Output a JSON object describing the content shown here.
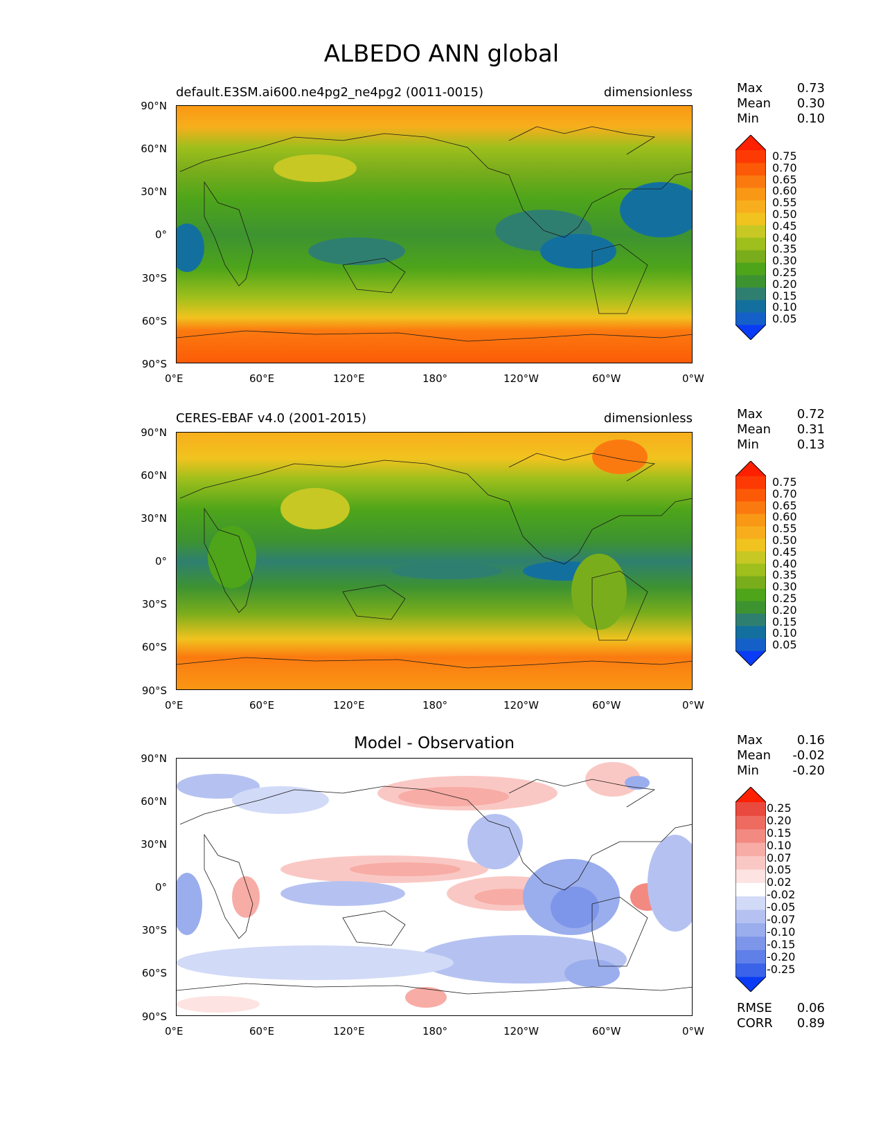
{
  "figure_title": "ALBEDO ANN global",
  "xticks": [
    "0°E",
    "60°E",
    "120°E",
    "180°",
    "120°W",
    "60°W",
    "0°W"
  ],
  "yticks": [
    "90°N",
    "60°N",
    "30°N",
    "0°",
    "30°S",
    "60°S",
    "90°S"
  ],
  "stat_labels": {
    "max": "Max",
    "mean": "Mean",
    "min": "Min",
    "rmse": "RMSE",
    "corr": "CORR"
  },
  "panels": [
    {
      "left_title": "default.E3SM.ai600.ne4pg2_ne4pg2 (0011-0015)",
      "right_title": "dimensionless",
      "center_title": "",
      "max": "0.73",
      "mean": "0.30",
      "min": "0.10",
      "colorbar_labels": [
        "0.75",
        "0.70",
        "0.65",
        "0.60",
        "0.55",
        "0.50",
        "0.45",
        "0.40",
        "0.35",
        "0.30",
        "0.25",
        "0.20",
        "0.15",
        "0.10",
        "0.05"
      ]
    },
    {
      "left_title": "CERES-EBAF v4.0 (2001-2015)",
      "right_title": "dimensionless",
      "center_title": "",
      "max": "0.72",
      "mean": "0.31",
      "min": "0.13",
      "colorbar_labels": [
        "0.75",
        "0.70",
        "0.65",
        "0.60",
        "0.55",
        "0.50",
        "0.45",
        "0.40",
        "0.35",
        "0.30",
        "0.25",
        "0.20",
        "0.15",
        "0.10",
        "0.05"
      ]
    },
    {
      "left_title": "",
      "right_title": "",
      "center_title": "Model - Observation",
      "max": "0.16",
      "mean": "-0.02",
      "min": "-0.20",
      "rmse": "0.06",
      "corr": "0.89",
      "colorbar_labels": [
        "0.25",
        "0.20",
        "0.15",
        "0.10",
        "0.07",
        "0.05",
        "0.02",
        "-0.02",
        "-0.05",
        "-0.07",
        "-0.10",
        "-0.15",
        "-0.20",
        "-0.25"
      ]
    }
  ],
  "colors": {
    "albedo_scale": [
      "#0a3cf5",
      "#1560c8",
      "#13709e",
      "#2f7f70",
      "#3d9330",
      "#4ea51a",
      "#7aad1c",
      "#9ebf1c",
      "#c7c824",
      "#f1c31e",
      "#f8ae1c",
      "#f99814",
      "#fb7a10",
      "#fc5a06",
      "#fd3a04",
      "#ff2000"
    ],
    "diff_scale": [
      "#0a3cf5",
      "#3a63ea",
      "#5f80e8",
      "#7d96ea",
      "#9aaded",
      "#b5c2f1",
      "#d1daf7",
      "#ffffff",
      "#fde3e1",
      "#fac8c4",
      "#f7aca5",
      "#f28a82",
      "#ee6b60",
      "#ea4a3e",
      "#ff2000"
    ],
    "coastline": "#1a1a1a"
  }
}
